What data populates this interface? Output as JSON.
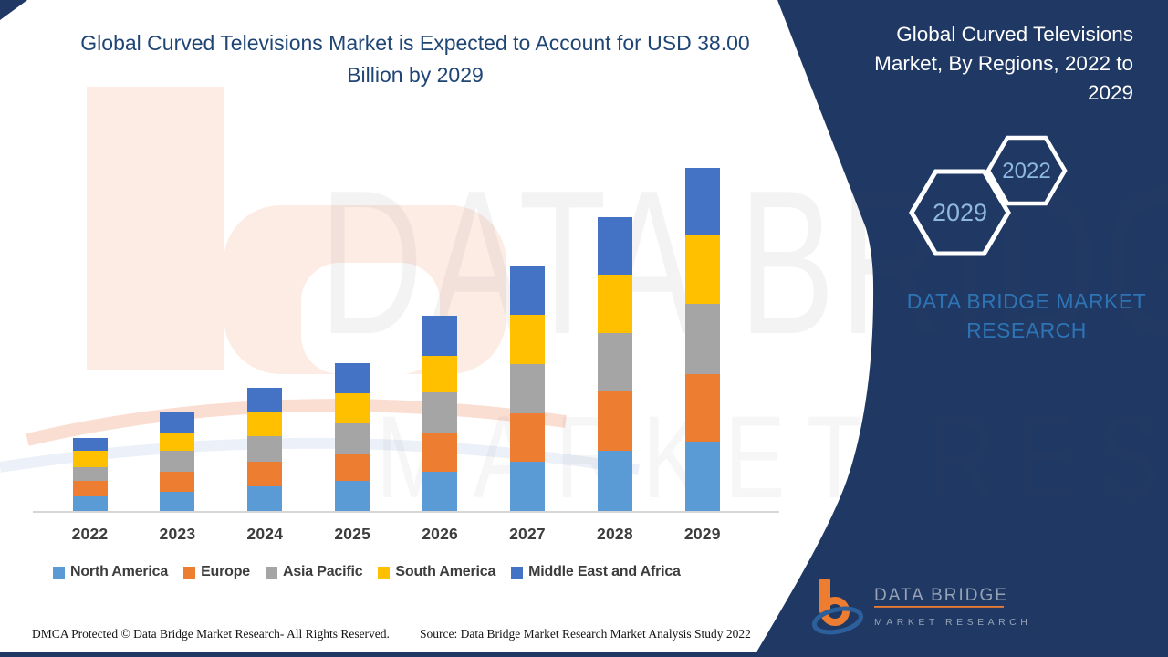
{
  "main_title": "Global Curved Televisions Market is Expected to Account for USD 38.00 Billion by 2029",
  "side_panel": {
    "title": "Global Curved Televisions Market, By Regions, 2022 to 2029",
    "hexagon_back_label": "2029",
    "hexagon_front_label": "2022",
    "brand_text": "DATA BRIDGE MARKET RESEARCH",
    "background_color": "#1f3864",
    "hexagon_text_color": "#8fb8e0",
    "brand_text_color": "#2e74b5"
  },
  "watermark": {
    "line1": "DATA BRIDGE",
    "line2": "MARKET RESEARCH"
  },
  "logo": {
    "icon": "data-bridge-b-icon",
    "title": "DATA BRIDGE",
    "subtitle": "MARKET RESEARCH",
    "icon_orange": "#ED7D31",
    "icon_blue": "#2d5f9b",
    "text_color": "#97a3b4"
  },
  "footer": {
    "left": "DMCA Protected © Data Bridge Market Research- All Rights Reserved.",
    "right": "Source: Data Bridge Market Research Market Analysis Study 2022"
  },
  "chart_data": {
    "type": "bar",
    "stacked": true,
    "unit": "USD billion",
    "title": "Global Curved Televisions Market, By Regions, 2022 to 2029",
    "xlabel": "",
    "ylabel": "",
    "gridlines": false,
    "y_axis_visible": false,
    "legend_position": "bottom",
    "categories": [
      "2022",
      "2023",
      "2024",
      "2025",
      "2026",
      "2027",
      "2028",
      "2029"
    ],
    "series": [
      {
        "name": "North America",
        "color": "#5B9BD5",
        "values": [
          1.6,
          2.1,
          2.7,
          3.3,
          4.3,
          5.5,
          6.7,
          7.7
        ]
      },
      {
        "name": "Europe",
        "color": "#ED7D31",
        "values": [
          1.7,
          2.2,
          2.8,
          3.0,
          4.4,
          5.3,
          6.5,
          7.5
        ]
      },
      {
        "name": "Asia Pacific",
        "color": "#A5A5A5",
        "values": [
          1.6,
          2.4,
          2.8,
          3.4,
          4.4,
          5.5,
          6.5,
          7.7
        ]
      },
      {
        "name": "South America",
        "color": "#FFC000",
        "values": [
          1.8,
          2.0,
          2.7,
          3.3,
          4.1,
          5.4,
          6.5,
          7.6
        ]
      },
      {
        "name": "Middle East and Africa",
        "color": "#4472C4",
        "values": [
          1.4,
          2.2,
          2.6,
          3.4,
          4.4,
          5.4,
          6.3,
          7.5
        ]
      }
    ],
    "totals": [
      8.1,
      10.9,
      13.6,
      16.4,
      21.6,
      27.1,
      32.5,
      38.0
    ]
  }
}
